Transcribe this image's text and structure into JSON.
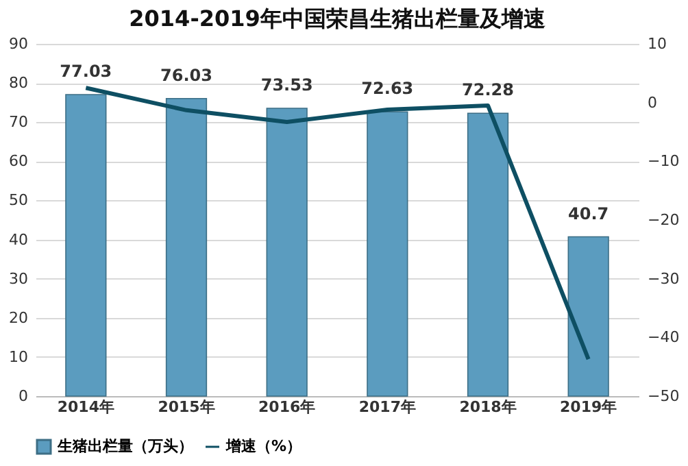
{
  "chart_data": {
    "type": "bar",
    "title": "2014-2019年中国荣昌生猪出栏量及增速",
    "categories": [
      "2014年",
      "2015年",
      "2016年",
      "2017年",
      "2018年",
      "2019年"
    ],
    "series": [
      {
        "name": "生猪出栏量（万头）",
        "color": "#5b9cbf",
        "values": [
          77.03,
          76.03,
          73.53,
          72.63,
          72.28,
          40.7
        ],
        "value_labels": [
          "77.03",
          "76.03",
          "73.53",
          "72.63",
          "72.28",
          "40.7"
        ]
      },
      {
        "name": "增速（%）",
        "type": "line",
        "axis": "y2",
        "color": "#0e4f63",
        "values": [
          2.5,
          -1.3,
          -3.3,
          -1.2,
          -0.5,
          -43.7
        ]
      }
    ],
    "ylim": [
      0,
      90
    ],
    "yticks": [
      0,
      10,
      20,
      30,
      40,
      50,
      60,
      70,
      80,
      90
    ],
    "y2lim": [
      -50,
      10
    ],
    "y2ticks": [
      -50,
      -40,
      -30,
      -20,
      -10,
      0,
      10
    ],
    "grid": "y",
    "legend": "bottom",
    "marker": "none",
    "line_style": "solid"
  }
}
